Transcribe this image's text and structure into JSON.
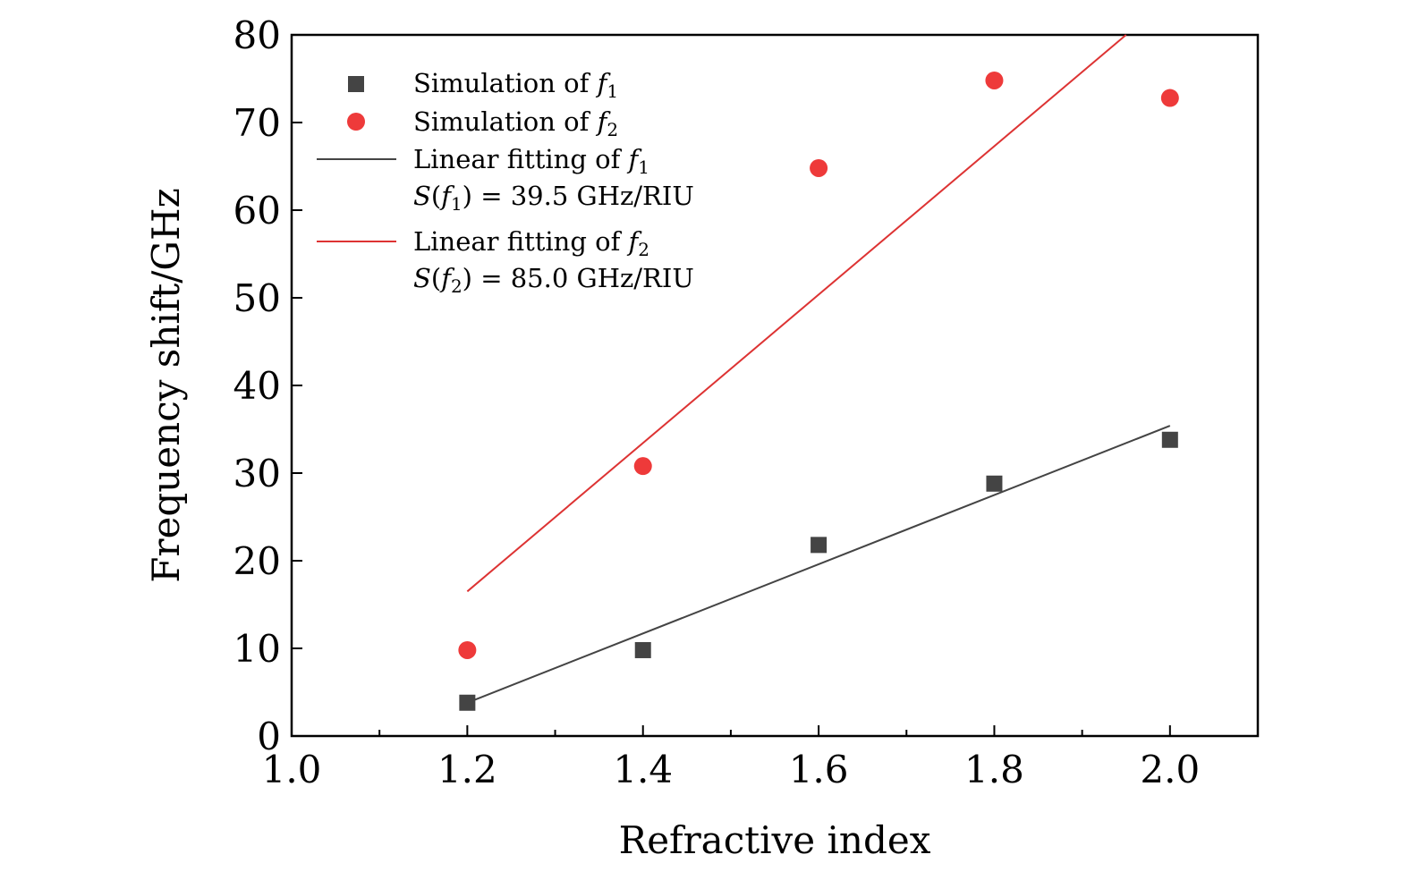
{
  "chart_data": {
    "type": "scatter",
    "xlabel": "Refractive index",
    "ylabel": "Frequency shift/GHz",
    "xlim": [
      1.0,
      2.1
    ],
    "ylim": [
      0,
      80
    ],
    "xticks": [
      1.0,
      1.2,
      1.4,
      1.6,
      1.8,
      2.0
    ],
    "xtick_labels": [
      "1.0",
      "1.2",
      "1.4",
      "1.6",
      "1.8",
      "2.0"
    ],
    "yticks": [
      0,
      10,
      20,
      30,
      40,
      50,
      60,
      70,
      80
    ],
    "ytick_labels": [
      "0",
      "10",
      "20",
      "30",
      "40",
      "50",
      "60",
      "70",
      "80"
    ],
    "grid": false,
    "legend_position": "top-left",
    "series": [
      {
        "name": "Simulation of f1",
        "legend_prefix": "Simulation of ",
        "legend_symbol": "f",
        "legend_sub": "1",
        "marker": "square",
        "color": "#444444",
        "x": [
          1.2,
          1.4,
          1.6,
          1.8,
          2.0
        ],
        "y": [
          3.8,
          9.8,
          21.8,
          28.8,
          33.8
        ]
      },
      {
        "name": "Simulation of f2",
        "legend_prefix": "Simulation of ",
        "legend_symbol": "f",
        "legend_sub": "2",
        "marker": "circle",
        "color": "#ee3a3a",
        "x": [
          1.2,
          1.4,
          1.6,
          1.8,
          2.0
        ],
        "y": [
          9.8,
          30.8,
          64.8,
          74.8,
          72.8
        ]
      }
    ],
    "fits": [
      {
        "name": "Linear fitting of f1",
        "legend_prefix": "Linear fitting of ",
        "legend_symbol": "f",
        "legend_sub": "1",
        "sensitivity_label": "= 39.5 GHz/RIU",
        "color": "#444444",
        "x": [
          1.2,
          2.0
        ],
        "y": [
          3.8,
          35.4
        ]
      },
      {
        "name": "Linear fitting of f2",
        "legend_prefix": "Linear fitting of ",
        "legend_symbol": "f",
        "legend_sub": "2",
        "sensitivity_label": "= 85.0 GHz/RIU",
        "color": "#dd3333",
        "x": [
          1.2,
          1.95
        ],
        "y": [
          16.5,
          80
        ]
      }
    ]
  }
}
